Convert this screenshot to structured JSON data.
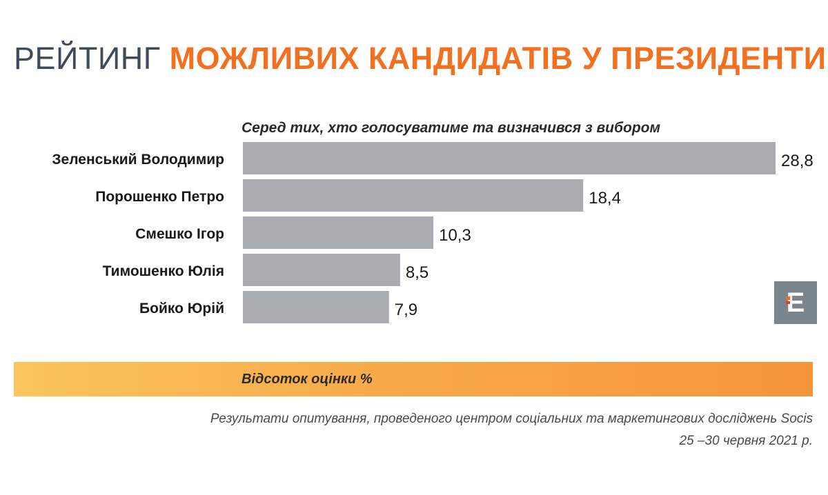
{
  "title": {
    "light": "РЕЙТИНГ",
    "bold": "МОЖЛИВИХ КАНДИДАТІВ У ПРЕЗИДЕНТИ"
  },
  "subtitle": "Серед тих, хто голосуватиме та визначився з вибором",
  "logo": {
    "letter": "E",
    "icon": "e-logo-icon"
  },
  "axis_label": "Відсоток оцінки %",
  "source": {
    "line1": "Результати опитування, проведеного центром соціальних та маркетингових досліджень Socis",
    "line2": "25 –30 червня 2021 р."
  },
  "colors": {
    "bar": "#a9adb1",
    "title_dark": "#3f4a5a",
    "accent": "#f37021"
  },
  "chart_data": {
    "type": "bar",
    "orientation": "horizontal",
    "categories": [
      "Зеленський Володимир",
      "Порошенко Петро",
      "Смешко Ігор",
      "Тимошенко Юлія",
      "Бойко Юрій"
    ],
    "values": [
      28.8,
      18.4,
      10.3,
      8.5,
      7.9
    ],
    "value_labels": [
      "28,8",
      "18,4",
      "10,3",
      "8,5",
      "7,9"
    ],
    "xlim": [
      0,
      28.8
    ],
    "grid": false,
    "legend": "none"
  }
}
